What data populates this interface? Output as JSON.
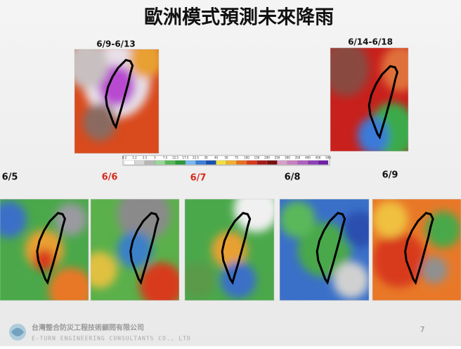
{
  "title": "歐洲模式預測未來降雨",
  "top_maps": [
    {
      "label": "6/9-6/13"
    },
    {
      "label": "6/14-6/18"
    }
  ],
  "colorbar": {
    "labels": [
      "0.2",
      "1.2",
      "2.5",
      "5",
      "7.5",
      "12.5",
      "17.5",
      "22.5",
      "30",
      "40",
      "50",
      "75",
      "100",
      "150",
      "200",
      "250",
      "300",
      "350",
      "400",
      "450",
      "500"
    ]
  },
  "daily_maps": [
    {
      "label": "6/5"
    },
    {
      "label": "6/6"
    },
    {
      "label": "6/7"
    },
    {
      "label": "6/8"
    },
    {
      "label": "6/9"
    }
  ],
  "footer": {
    "company": "台灣整合防災工程技術顧問有限公司",
    "company_en": "E-TURN ENGINEERING CONSULTANTS CO., LTD",
    "page": "7"
  }
}
